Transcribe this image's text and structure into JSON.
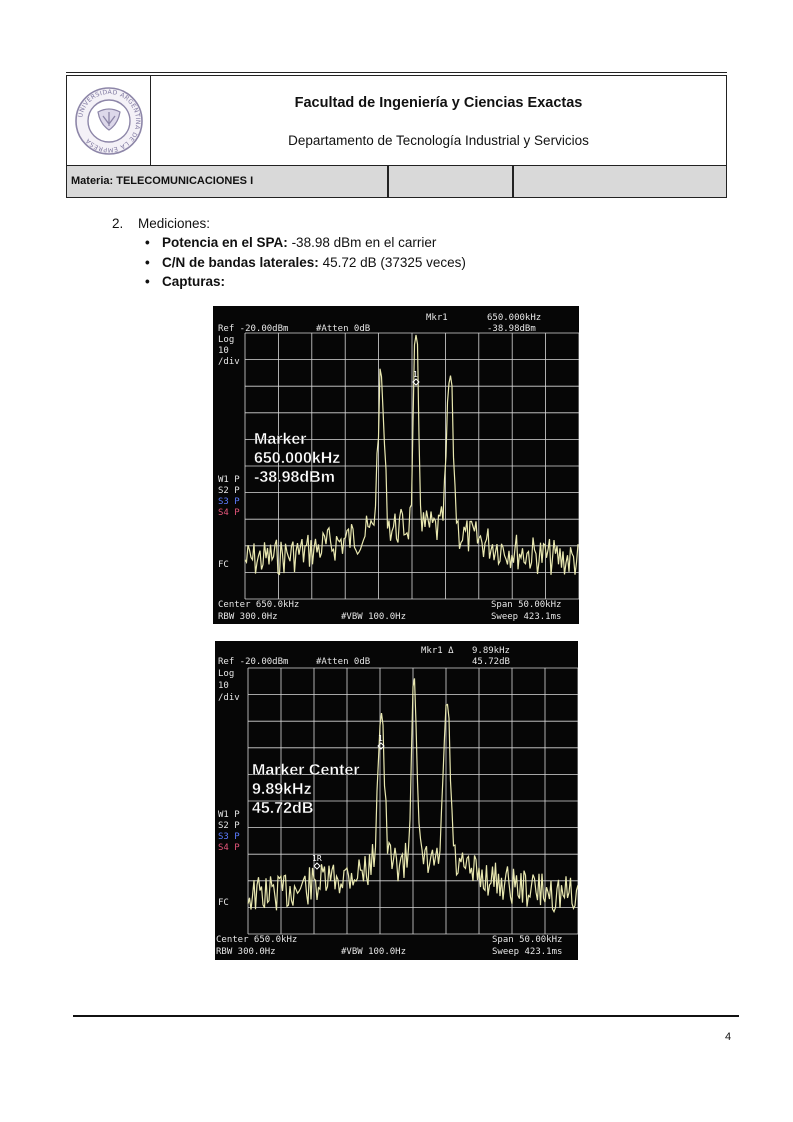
{
  "header": {
    "faculty": "Facultad de Ingeniería y Ciencias Exactas",
    "department": "Departamento de Tecnología Industrial y Servicios",
    "subject": "Materia: TELECOMUNICACIONES I",
    "seal_text": "UNIVERSIDAD ARGENTINA DE LA EMPRESA"
  },
  "section": {
    "number": "2.",
    "title": "Mediciones:",
    "bullets": [
      {
        "label": "Potencia en el SPA:",
        "value": "-38.98 dBm en el carrier"
      },
      {
        "label": "C/N de bandas laterales:",
        "value": "45.72 dB (37325 veces)"
      },
      {
        "label": "Capturas:",
        "value": ""
      }
    ]
  },
  "captures": [
    {
      "ref": "Ref -20.00dBm",
      "atten": "#Atten 0dB",
      "mkr_label": "Mkr1",
      "mkr_value1": "650.000kHz",
      "mkr_value2": "-38.98dBm",
      "scale": [
        "Log",
        "10",
        "/div"
      ],
      "traces": [
        "W1 P",
        "S2 P",
        "S3 P",
        "S4 P"
      ],
      "fc": "FC",
      "center": "Center 650.0kHz",
      "rbw": "RBW 300.0Hz",
      "vbw": "#VBW 100.0Hz",
      "span": "Span 50.00kHz",
      "sweep": "Sweep 423.1ms",
      "overlay": [
        "Marker",
        "650.000kHz",
        "-38.98dBm"
      ],
      "marker_tag": "1",
      "ref_marker_tag": ""
    },
    {
      "ref": "Ref -20.00dBm",
      "atten": "#Atten 0dB",
      "mkr_label": "Mkr1 Δ",
      "mkr_value1": "9.89kHz",
      "mkr_value2": "45.72dB",
      "scale": [
        "Log",
        "10",
        "/div"
      ],
      "traces": [
        "W1 P",
        "S2 P",
        "S3 P",
        "S4 P"
      ],
      "fc": "FC",
      "center": "Center 650.0kHz",
      "rbw": "RBW 300.0Hz",
      "vbw": "#VBW 100.0Hz",
      "span": "Span 50.00kHz",
      "sweep": "Sweep 423.1ms",
      "overlay": [
        "Marker Center",
        "9.89kHz",
        "45.72dB"
      ],
      "marker_tag": "1",
      "ref_marker_tag": "1R"
    }
  ],
  "footer": {
    "page_number": "4"
  }
}
